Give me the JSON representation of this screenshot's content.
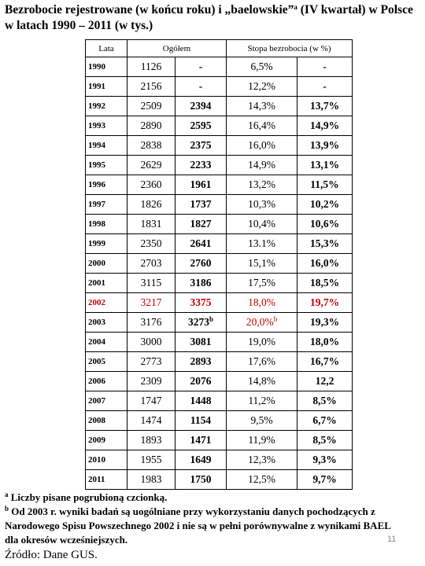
{
  "header": {
    "title_main": "Bezrobocie rejestrowane (w końcu roku) i „baelowskie”",
    "title_sup": "a",
    "title_rest": " (IV kwartał) w Polsce w latach 1990 – 2011 (w tys.)"
  },
  "table": {
    "columns": [
      "Lata",
      "Ogółem",
      "Stopa bezrobocia (w %)"
    ],
    "rows": [
      {
        "cells": [
          "1990",
          "1126",
          "-",
          "6,5%",
          "-"
        ]
      },
      {
        "cells": [
          "1991",
          "2156",
          "-",
          "12,2%",
          "-"
        ]
      },
      {
        "cells": [
          "1992",
          "2509",
          "2394",
          "14,3%",
          "13,7%"
        ]
      },
      {
        "cells": [
          "1993",
          "2890",
          "2595",
          "16,4%",
          "14,9%"
        ]
      },
      {
        "cells": [
          "1994",
          "2838",
          "2375",
          "16,0%",
          "13,9%"
        ]
      },
      {
        "cells": [
          "1995",
          "2629",
          "2233",
          "14,9%",
          "13,1%"
        ]
      },
      {
        "cells": [
          "1996",
          "2360",
          "1961",
          "13,2%",
          "11,5%"
        ]
      },
      {
        "cells": [
          "1997",
          "1826",
          "1737",
          "10,3%",
          "10,2%"
        ]
      },
      {
        "cells": [
          "1998",
          "1831",
          "1827",
          "10,4%",
          "10,6%"
        ]
      },
      {
        "cells": [
          "1999",
          "2350",
          "2641",
          "13.1%",
          "15,3%"
        ]
      },
      {
        "cells": [
          "2000",
          "2703",
          "2760",
          "15,1%",
          "16,0%"
        ]
      },
      {
        "cells": [
          "2001",
          "3115",
          "3186",
          "17,5%",
          "18,5%"
        ]
      },
      {
        "cells": [
          "2002",
          "3217",
          "3375",
          "18,0%",
          "19,7%"
        ],
        "color": "#c00000"
      },
      {
        "cells": [
          "2003",
          "3176",
          {
            "text": "3273",
            "sup": "b"
          },
          {
            "text": "20,0%",
            "sup": "b",
            "color": "#c00000"
          },
          "19,3%"
        ]
      },
      {
        "cells": [
          "2004",
          "3000",
          "3081",
          "19,0%",
          "18,0%"
        ]
      },
      {
        "cells": [
          "2005",
          "2773",
          "2893",
          "17,6%",
          "16,7%"
        ]
      },
      {
        "cells": [
          "2006",
          "2309",
          "2076",
          "14,8%",
          "12,2"
        ]
      },
      {
        "cells": [
          "2007",
          "1747",
          "1448",
          "11,2%",
          "8,5%"
        ]
      },
      {
        "cells": [
          "2008",
          "1474",
          "1154",
          "9,5%",
          "6,7%"
        ]
      },
      {
        "cells": [
          "2009",
          "1893",
          "1471",
          "11,9%",
          "8,5%"
        ]
      },
      {
        "cells": [
          "2010",
          "1955",
          "1649",
          "12,3%",
          "9,3%"
        ]
      },
      {
        "cells": [
          "2011",
          "1983",
          "1750",
          "12,5%",
          "9,7%"
        ]
      }
    ]
  },
  "footnotes": [
    {
      "mark": "a",
      "text": " Liczby pisane pogrubioną czcionką."
    },
    {
      "mark": "b",
      "text": " Od 2003 r. wyniki badań są uogólniane przy wykorzystaniu danych pochodzących z Narodowego Spisu Powszechnego 2002 i nie są w pełni porównywalne z wynikami BAEL  dla okresów wcześniejszych."
    }
  ],
  "page_number": "11",
  "source": "Źródło: Dane GUS."
}
